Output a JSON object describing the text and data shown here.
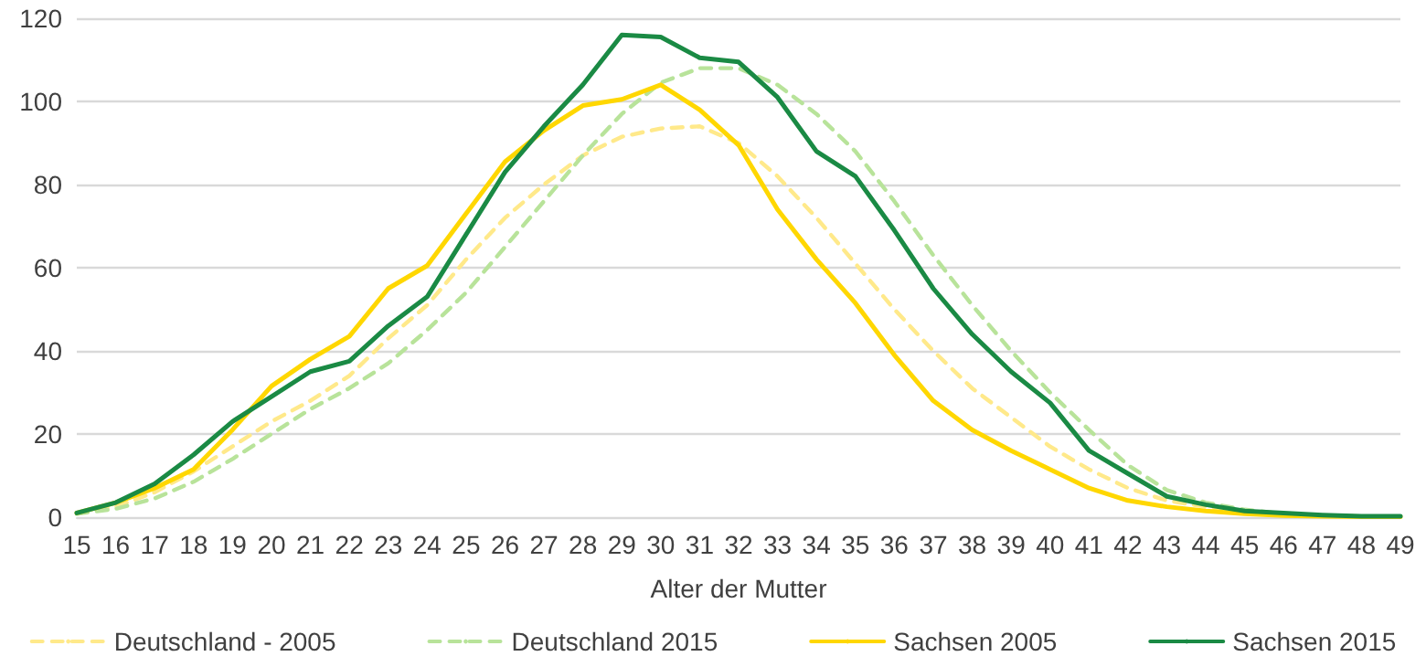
{
  "chart_data": {
    "type": "line",
    "xlabel": "Alter der Mutter",
    "categories": [
      "15",
      "16",
      "17",
      "18",
      "19",
      "20",
      "21",
      "22",
      "23",
      "24",
      "25",
      "26",
      "27",
      "28",
      "29",
      "30",
      "31",
      "32",
      "33",
      "34",
      "35",
      "36",
      "37",
      "38",
      "39",
      "40",
      "41",
      "42",
      "43",
      "44",
      "45",
      "46",
      "47",
      "48",
      "49"
    ],
    "series": [
      {
        "name": "Deutschland - 2005",
        "color": "#ffe98a",
        "line_style": "dashed",
        "values": [
          1,
          2.5,
          6,
          11,
          17,
          23,
          28,
          34,
          43,
          51,
          62,
          72,
          80,
          87,
          91.5,
          93.5,
          94,
          90,
          82,
          72,
          61,
          50,
          40,
          31,
          24,
          17,
          11.5,
          7,
          4,
          2.5,
          1.2,
          0.6,
          0.3,
          null,
          null
        ]
      },
      {
        "name": "Deutschland 2015",
        "color": "#b8e39a",
        "line_style": "dashed",
        "values": [
          0.8,
          2,
          4.5,
          8.5,
          14,
          20,
          26,
          31,
          37,
          45,
          54,
          65,
          76,
          87,
          97,
          104.5,
          108,
          108,
          104,
          97,
          88,
          76,
          63,
          51,
          40,
          30,
          21,
          12.5,
          6.5,
          3.5,
          1.8,
          0.8,
          0.4,
          0.2,
          0.1
        ]
      },
      {
        "name": "Sachsen 2005",
        "color": "#ffd700",
        "line_style": "solid",
        "values": [
          1,
          3.5,
          7,
          11.5,
          21,
          31.5,
          38,
          43.5,
          55,
          60.5,
          73,
          85.5,
          93,
          99,
          100.5,
          104,
          98,
          89.5,
          74,
          62,
          51.5,
          39,
          28,
          21,
          16,
          11.5,
          7,
          4,
          2.5,
          1.5,
          0.8,
          0.4,
          0.2,
          0.1,
          0.1
        ]
      },
      {
        "name": "Sachsen 2015",
        "color": "#1a8a44",
        "line_style": "solid",
        "values": [
          1,
          3.5,
          8,
          15,
          23,
          29,
          35,
          37.5,
          46,
          53,
          68,
          83,
          94,
          104,
          116,
          115.5,
          110.5,
          109.5,
          101,
          88,
          82,
          69,
          55,
          44,
          35,
          27.5,
          16,
          10.5,
          5,
          3,
          1.5,
          1,
          0.5,
          0.2,
          0.2
        ]
      }
    ],
    "ylim": [
      0,
      120
    ],
    "yticks": [
      0,
      20,
      40,
      60,
      80,
      100,
      120
    ],
    "grid": "y",
    "legend": "bottom",
    "marker": "none"
  }
}
